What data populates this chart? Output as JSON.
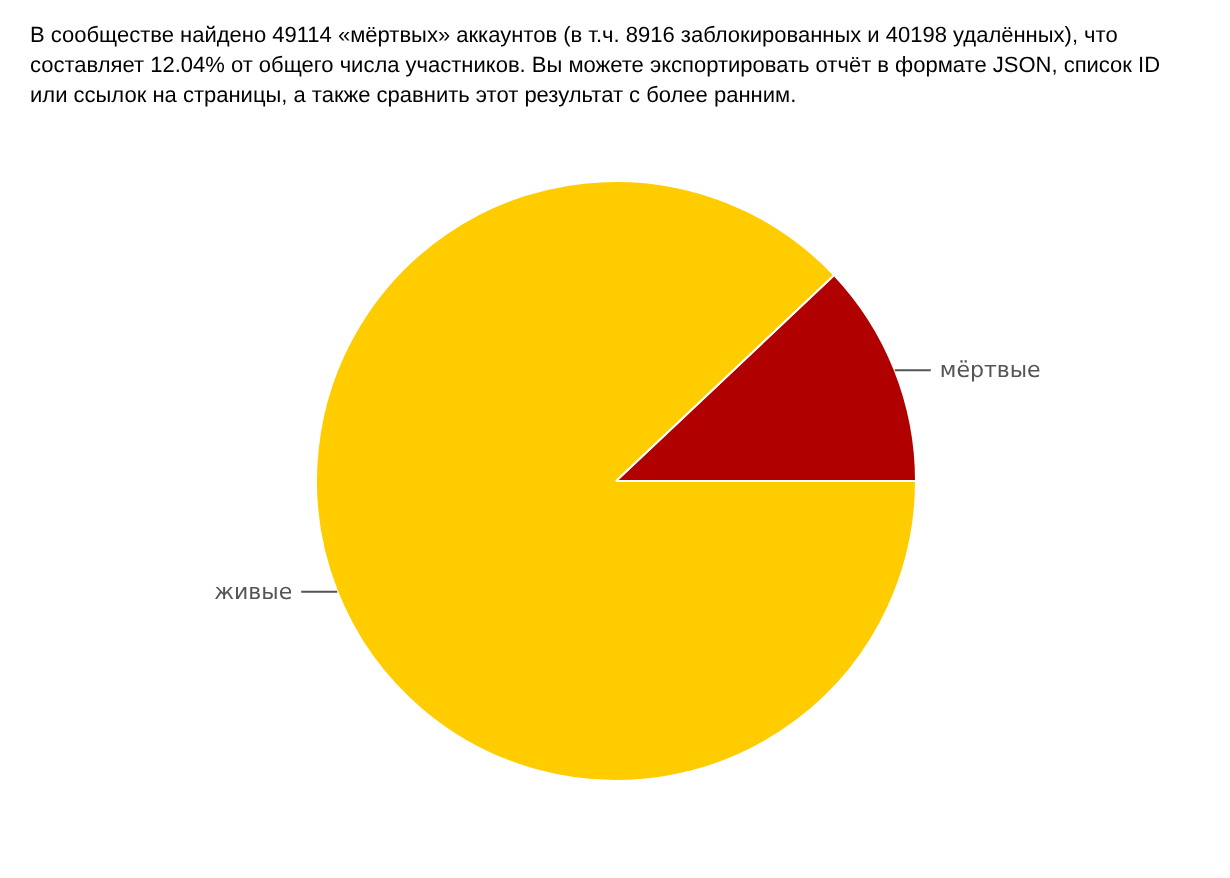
{
  "chart_data": {
    "type": "pie",
    "title": "В сообществе найдено 49114 «мёртвых» аккаунтов (в т.ч. 8916 заблокированных и 40198 удалённых), что составляет 12.04% от общего числа участников. Вы можете экспортировать отчёт в формате JSON, список ID или ссылок на страницы, а также сравнить этот результат с более ранним.",
    "categories": [
      "мёртвые",
      "живые"
    ],
    "values": [
      12.04,
      87.96
    ],
    "colors": [
      "#b00000",
      "#ffcc00"
    ]
  }
}
